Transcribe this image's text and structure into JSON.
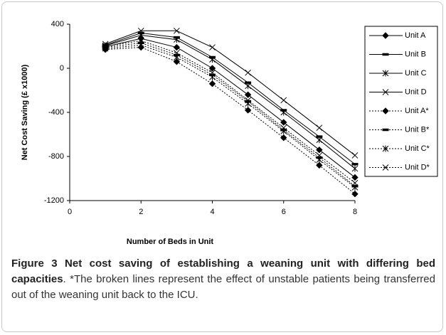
{
  "chart_data": {
    "type": "line",
    "xlabel": "Number of Beds in Unit",
    "ylabel": "Net Cost Saving (£ x1000)",
    "x": [
      1,
      2,
      3,
      4,
      5,
      6,
      7,
      8
    ],
    "xlim": [
      0,
      8
    ],
    "xticks": [
      0,
      2,
      4,
      6,
      8
    ],
    "ylim": [
      -1200,
      400
    ],
    "yticks": [
      400,
      0,
      -400,
      -800,
      -1200
    ],
    "legend": "right",
    "series": [
      {
        "name": "Unit A",
        "color": "#000000",
        "marker": "diamond",
        "dash": "solid",
        "values": [
          195,
          270,
          190,
          0,
          -240,
          -490,
          -740,
          -990
        ]
      },
      {
        "name": "Unit B",
        "color": "#000000",
        "marker": "dash",
        "dash": "solid",
        "values": [
          210,
          320,
          280,
          100,
          -130,
          -380,
          -620,
          -870
        ]
      },
      {
        "name": "Unit C",
        "color": "#000000",
        "marker": "asterisk",
        "dash": "solid",
        "values": [
          205,
          300,
          260,
          80,
          -160,
          -400,
          -650,
          -910
        ]
      },
      {
        "name": "Unit D",
        "color": "#000000",
        "marker": "x",
        "dash": "solid",
        "values": [
          220,
          340,
          340,
          190,
          -40,
          -290,
          -540,
          -790
        ]
      },
      {
        "name": "Unit A*",
        "color": "#000000",
        "marker": "diamond",
        "dash": "dotted",
        "values": [
          170,
          190,
          60,
          -140,
          -380,
          -630,
          -880,
          -1140
        ]
      },
      {
        "name": "Unit B*",
        "color": "#000000",
        "marker": "dash",
        "dash": "dotted",
        "values": [
          190,
          230,
          120,
          -60,
          -300,
          -560,
          -810,
          -1070
        ]
      },
      {
        "name": "Unit C*",
        "color": "#000000",
        "marker": "asterisk",
        "dash": "dotted",
        "values": [
          180,
          210,
          100,
          -80,
          -320,
          -570,
          -830,
          -1080
        ]
      },
      {
        "name": "Unit D*",
        "color": "#000000",
        "marker": "x",
        "dash": "dotted",
        "values": [
          200,
          250,
          140,
          -40,
          -290,
          -540,
          -790,
          -1040
        ]
      }
    ]
  },
  "caption": {
    "label": "Figure 3",
    "title": "Net cost saving of establishing a weaning unit with differing bed capacities",
    "text": ". *The broken lines represent the effect of unstable patients being transferred out of the weaning unit back to the ICU."
  }
}
